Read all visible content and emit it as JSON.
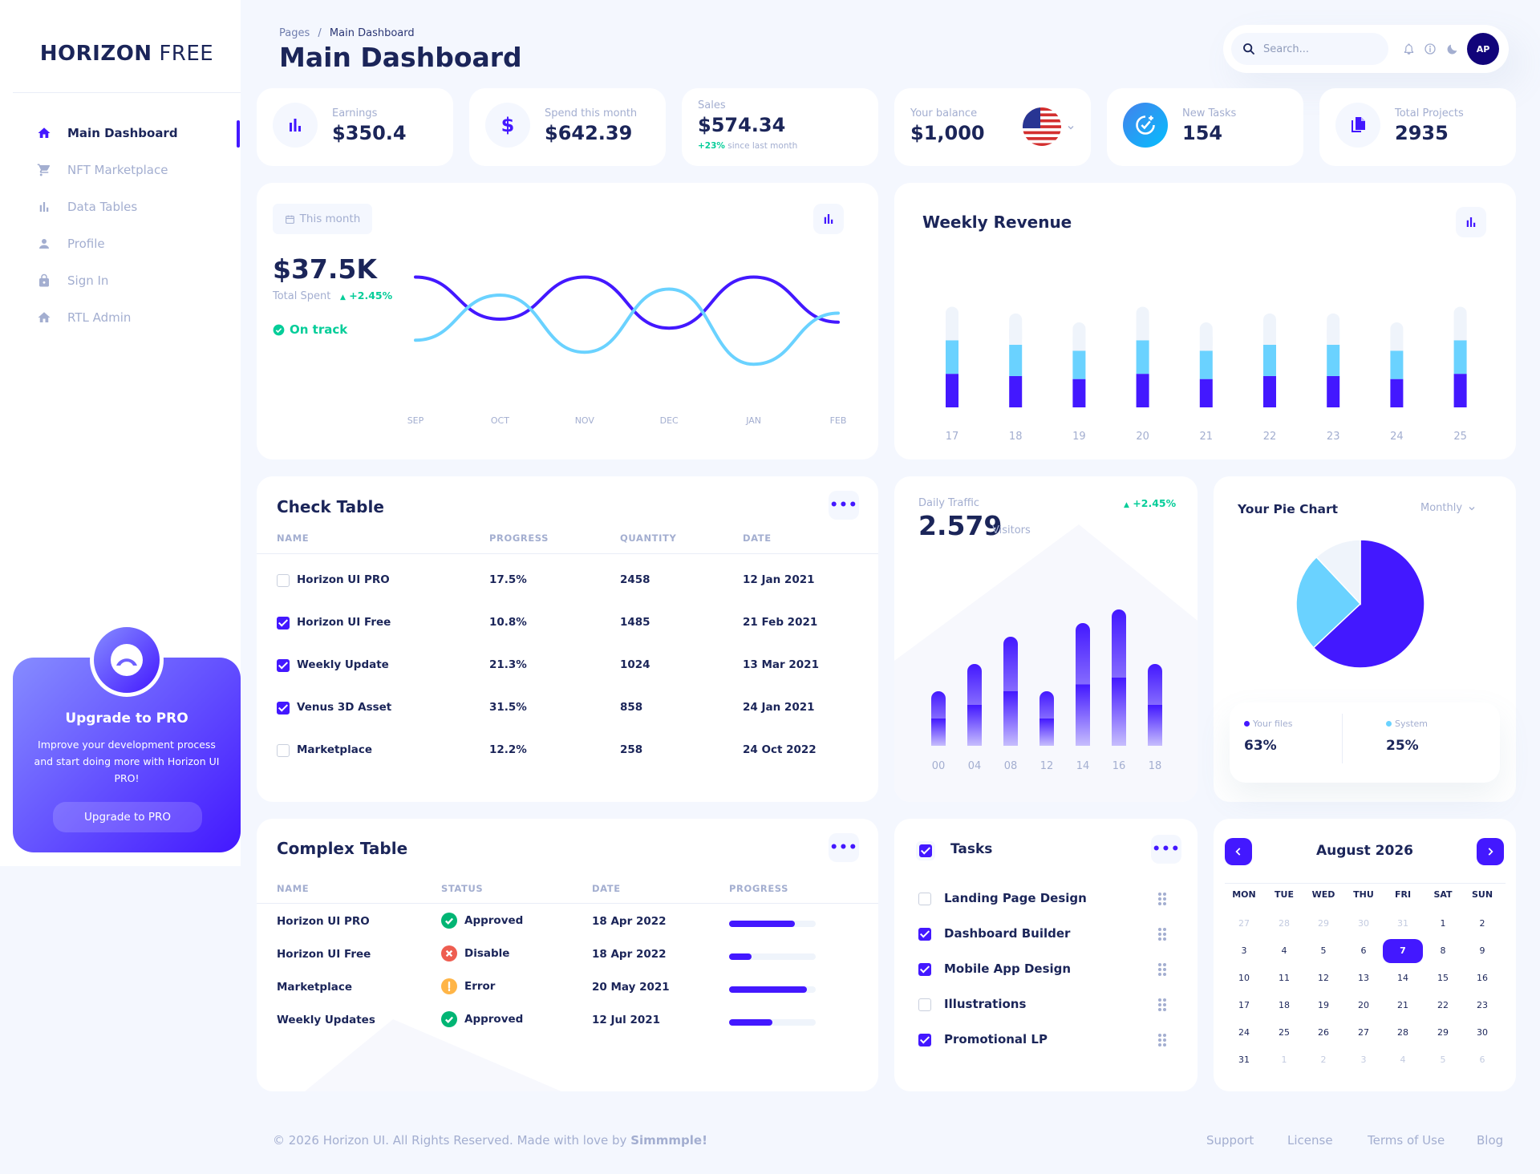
{
  "sidebar": {
    "brand_bold": "HORIZON",
    "brand_light": "FREE",
    "items": [
      {
        "label": "Main Dashboard",
        "icon": "home-icon"
      },
      {
        "label": "NFT Marketplace",
        "icon": "cart-icon"
      },
      {
        "label": "Data Tables",
        "icon": "bar-chart-icon"
      },
      {
        "label": "Profile",
        "icon": "person-icon"
      },
      {
        "label": "Sign In",
        "icon": "lock-icon"
      },
      {
        "label": "RTL Admin",
        "icon": "home-icon"
      }
    ],
    "upgrade": {
      "title": "Upgrade to PRO",
      "description": "Improve your development process and start doing more with Horizon UI PRO!",
      "button": "Upgrade to PRO"
    }
  },
  "header": {
    "breadcrumb_root": "Pages",
    "breadcrumb_sep": "/",
    "breadcrumb_current": "Main Dashboard",
    "title": "Main Dashboard",
    "search_placeholder": "Search...",
    "avatar_initials": "AP"
  },
  "stats": {
    "earnings": {
      "label": "Earnings",
      "value": "$350.4"
    },
    "spend": {
      "label": "Spend this month",
      "value": "$642.39"
    },
    "sales": {
      "label": "Sales",
      "value": "$574.34",
      "change": "+23%",
      "change_note": "since last month"
    },
    "balance": {
      "label": "Your balance",
      "value": "$1,000"
    },
    "tasks": {
      "label": "New Tasks",
      "value": "154"
    },
    "projects": {
      "label": "Total Projects",
      "value": "2935"
    }
  },
  "total_spent": {
    "period_button": "This month",
    "amount": "$37.5K",
    "label": "Total Spent",
    "change": "+2.45%",
    "status": "On track",
    "chart_data": {
      "type": "line",
      "categories": [
        "SEP",
        "OCT",
        "NOV",
        "DEC",
        "JAN",
        "FEB"
      ],
      "series": [
        {
          "values": [
            3,
            1.6,
            3,
            1.3,
            3,
            1.5
          ],
          "color": "#4318ff"
        },
        {
          "values": [
            0.9,
            2.4,
            0.5,
            2.6,
            0.1,
            1.8
          ],
          "color": "#6ad2ff"
        }
      ]
    }
  },
  "weekly_revenue": {
    "title": "Weekly Revenue",
    "chart_data": {
      "type": "bar",
      "stacked": true,
      "categories": [
        "17",
        "18",
        "19",
        "20",
        "21",
        "22",
        "23",
        "24",
        "25"
      ],
      "series": [
        {
          "color": "#4318ff",
          "values": [
            45,
            42,
            38,
            45,
            38,
            42,
            42,
            38,
            45
          ]
        },
        {
          "color": "#6ad2ff",
          "values": [
            45,
            42,
            38,
            45,
            38,
            42,
            42,
            38,
            45
          ]
        },
        {
          "color": "#eff4fb",
          "values": [
            45,
            42,
            38,
            45,
            38,
            42,
            42,
            38,
            45
          ]
        }
      ]
    }
  },
  "check_table": {
    "title": "Check Table",
    "columns": [
      "NAME",
      "PROGRESS",
      "QUANTITY",
      "DATE"
    ],
    "rows": [
      {
        "name": "Horizon UI PRO",
        "progress": "17.5%",
        "quantity": "2458",
        "date": "12 Jan 2021",
        "checked": false
      },
      {
        "name": "Horizon UI Free",
        "progress": "10.8%",
        "quantity": "1485",
        "date": "21 Feb 2021",
        "checked": true
      },
      {
        "name": "Weekly Update",
        "progress": "21.3%",
        "quantity": "1024",
        "date": "13 Mar 2021",
        "checked": true
      },
      {
        "name": "Venus 3D Asset",
        "progress": "31.5%",
        "quantity": "858",
        "date": "24 Jan 2021",
        "checked": true
      },
      {
        "name": "Marketplace",
        "progress": "12.2%",
        "quantity": "258",
        "date": "24 Oct 2022",
        "checked": false
      }
    ]
  },
  "daily_traffic": {
    "label": "Daily Traffic",
    "value": "2.579",
    "unit": "Visitors",
    "change": "+2.45%",
    "chart_data": {
      "type": "bar",
      "categories": [
        "00",
        "04",
        "08",
        "12",
        "14",
        "16",
        "18"
      ],
      "values": [
        20,
        30,
        40,
        20,
        45,
        50,
        30
      ]
    }
  },
  "pie": {
    "title": "Your Pie Chart",
    "period": "Monthly",
    "legend": [
      {
        "label": "Your files",
        "value": "63%",
        "color": "#4318ff"
      },
      {
        "label": "System",
        "value": "25%",
        "color": "#6ad2ff"
      }
    ],
    "chart_data": {
      "type": "pie",
      "values": [
        63,
        25,
        12
      ],
      "colors": [
        "#4318ff",
        "#6ad2ff",
        "#eff4fb"
      ]
    }
  },
  "complex_table": {
    "title": "Complex Table",
    "columns": [
      "NAME",
      "STATUS",
      "DATE",
      "PROGRESS"
    ],
    "rows": [
      {
        "name": "Horizon UI PRO",
        "status": "Approved",
        "status_icon": "check-circle-icon",
        "status_color": "#01b574",
        "date": "18 Apr 2022",
        "progress": 0.76
      },
      {
        "name": "Horizon UI Free",
        "status": "Disable",
        "status_icon": "x-circle-icon",
        "status_color": "#ee5d50",
        "date": "18 Apr 2022",
        "progress": 0.26
      },
      {
        "name": "Marketplace",
        "status": "Error",
        "status_icon": "alert-circle-icon",
        "status_color": "#ffb547",
        "date": "20 May 2021",
        "progress": 0.9
      },
      {
        "name": "Weekly Updates",
        "status": "Approved",
        "status_icon": "check-circle-icon",
        "status_color": "#01b574",
        "date": "12 Jul 2021",
        "progress": 0.5
      }
    ]
  },
  "tasks": {
    "title": "Tasks",
    "items": [
      {
        "label": "Landing Page Design",
        "checked": false
      },
      {
        "label": "Dashboard Builder",
        "checked": true
      },
      {
        "label": "Mobile App Design",
        "checked": true
      },
      {
        "label": "Illustrations",
        "checked": false
      },
      {
        "label": "Promotional LP",
        "checked": true
      }
    ]
  },
  "calendar": {
    "month": "August 2026",
    "weekdays": [
      "MON",
      "TUE",
      "WED",
      "THU",
      "FRI",
      "SAT",
      "SUN"
    ],
    "weeks": [
      [
        "27",
        "28",
        "29",
        "30",
        "31",
        "1",
        "2"
      ],
      [
        "3",
        "4",
        "5",
        "6",
        "7",
        "8",
        "9"
      ],
      [
        "10",
        "11",
        "12",
        "13",
        "14",
        "15",
        "16"
      ],
      [
        "17",
        "18",
        "19",
        "20",
        "21",
        "22",
        "23"
      ],
      [
        "24",
        "25",
        "26",
        "27",
        "28",
        "29",
        "30"
      ],
      [
        "31",
        "1",
        "2",
        "3",
        "4",
        "5",
        "6"
      ]
    ],
    "selected": "7"
  },
  "footer": {
    "copyright": "© 2026 Horizon UI. All Rights Reserved. Made with love by",
    "author": "Simmmple!",
    "links": [
      "Support",
      "License",
      "Terms of Use",
      "Blog"
    ]
  }
}
